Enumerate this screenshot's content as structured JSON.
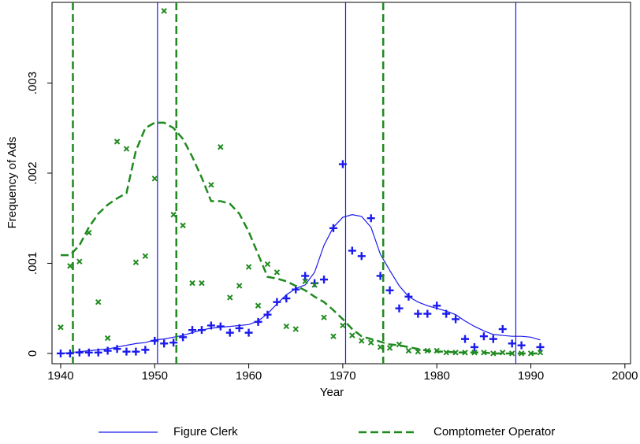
{
  "chart_data": {
    "type": "scatter",
    "x_label": "Year",
    "y_label": "Frequency of Ads",
    "xlim": [
      1939.08,
      2000.6
    ],
    "ylim": [
      -0.000114,
      0.003895
    ],
    "xticks": [
      1940,
      1950,
      1960,
      1970,
      1980,
      1990,
      2000
    ],
    "yticks": [
      {
        "value": 0,
        "label": "0"
      },
      {
        "value": 0.001,
        "label": ".001"
      },
      {
        "value": 0.002,
        "label": ".002"
      },
      {
        "value": 0.003,
        "label": ".003"
      }
    ],
    "legend": "bottom",
    "series": [
      {
        "name": "Figure Clerk",
        "color": "#1a1aee",
        "marker": "plus",
        "line_style": "solid",
        "x": [
          1940,
          1941,
          1942,
          1943,
          1944,
          1945,
          1946,
          1947,
          1948,
          1949,
          1950,
          1951,
          1952,
          1953,
          1954,
          1955,
          1956,
          1957,
          1958,
          1959,
          1960,
          1961,
          1962,
          1963,
          1964,
          1965,
          1966,
          1967,
          1968,
          1969,
          1970,
          1971,
          1972,
          1973,
          1974,
          1975,
          1976,
          1977,
          1978,
          1979,
          1980,
          1981,
          1982,
          1983,
          1984,
          1985,
          1986,
          1987,
          1988,
          1989,
          1990,
          1991
        ],
        "values": [
          0,
          0,
          1e-05,
          1e-05,
          1e-05,
          3e-05,
          5e-05,
          2e-05,
          2e-05,
          4e-05,
          0.00014,
          0.00011,
          0.00012,
          0.00018,
          0.00026,
          0.00026,
          0.00031,
          0.0003,
          0.00023,
          0.00028,
          0.00023,
          0.00035,
          0.00043,
          0.00057,
          0.00061,
          0.00071,
          0.00086,
          0.00078,
          0.00082,
          0.00139,
          0.0021,
          0.00114,
          0.00108,
          0.0015,
          0.00086,
          0.0007,
          0.0005,
          0.00063,
          0.00044,
          0.00044,
          0.00053,
          0.00044,
          0.00038,
          0.00016,
          7e-05,
          0.00019,
          0.00016,
          0.00027,
          0.00011,
          9e-05,
          null,
          7e-05
        ],
        "smooth": [
          0,
          1e-05,
          2e-05,
          3e-05,
          4e-05,
          5e-05,
          7e-05,
          9e-05,
          0.00011,
          0.00012,
          0.00015,
          0.00016,
          0.00018,
          0.0002,
          0.00023,
          0.00026,
          0.00028,
          0.00029,
          0.0003,
          0.00031,
          0.00032,
          0.00036,
          0.00044,
          0.00055,
          0.00065,
          0.00072,
          0.00076,
          0.0009,
          0.0012,
          0.0014,
          0.00151,
          0.00154,
          0.00152,
          0.0014,
          0.0011,
          0.00092,
          0.00075,
          0.00063,
          0.00057,
          0.00053,
          0.0005,
          0.00047,
          0.00043,
          0.00036,
          0.0003,
          0.00025,
          0.00021,
          0.0002,
          0.00019,
          0.00019,
          0.00018,
          0.00015
        ],
        "vlines": [
          1950.3,
          1970.3,
          1988.4
        ]
      },
      {
        "name": "Comptometer Operator",
        "color": "#1f8a1f",
        "marker": "cross",
        "line_style": "dashed",
        "x": [
          1940,
          1941,
          1942,
          1943,
          1944,
          1945,
          1946,
          1947,
          1948,
          1949,
          1950,
          1951,
          1952,
          1953,
          1954,
          1955,
          1956,
          1957,
          1958,
          1959,
          1960,
          1961,
          1962,
          1963,
          1964,
          1965,
          1966,
          1967,
          1968,
          1969,
          1970,
          1971,
          1972,
          1973,
          1974,
          1975,
          1976,
          1977,
          1978,
          1979,
          1980,
          1981,
          1982,
          1983,
          1984,
          1985,
          1986,
          1987,
          1988,
          1989,
          1990,
          1991
        ],
        "values": [
          0.00029,
          0.00097,
          0.00102,
          0.00134,
          0.00057,
          0.00017,
          0.00235,
          0.00227,
          0.00101,
          0.00108,
          0.00194,
          0.0038,
          0.00154,
          0.00142,
          0.00078,
          0.00078,
          0.00187,
          0.00229,
          0.00062,
          0.00075,
          0.00096,
          0.00053,
          0.00099,
          0.0009,
          0.0003,
          0.00027,
          0.0008,
          0.00076,
          0.0004,
          0.00019,
          0.00031,
          0.0002,
          0.00014,
          0.00012,
          7e-05,
          6e-05,
          0.0001,
          3e-05,
          2e-05,
          3e-05,
          3e-05,
          1e-05,
          1e-05,
          1e-05,
          1e-05,
          1e-05,
          0,
          1e-05,
          0,
          0,
          0,
          1e-05
        ],
        "smooth": [
          0.00109,
          0.00109,
          0.0012,
          0.0014,
          0.00155,
          0.00165,
          0.00172,
          0.00178,
          0.00225,
          0.0025,
          0.00256,
          0.00256,
          0.0025,
          0.00238,
          0.00218,
          0.00195,
          0.00169,
          0.00169,
          0.00166,
          0.00155,
          0.00135,
          0.0011,
          0.00085,
          0.00083,
          0.0008,
          0.00075,
          0.0007,
          0.00063,
          0.00057,
          0.00048,
          0.00038,
          0.00027,
          0.00019,
          0.00016,
          0.00013,
          0.0001,
          9e-05,
          7e-05,
          5e-05,
          3e-05,
          2e-05,
          2e-05,
          1e-05,
          1e-05,
          1e-05,
          1e-05,
          0,
          0,
          0,
          0,
          0,
          0
        ],
        "vlines": [
          1941.3,
          1952.3,
          1974.3
        ]
      }
    ]
  }
}
